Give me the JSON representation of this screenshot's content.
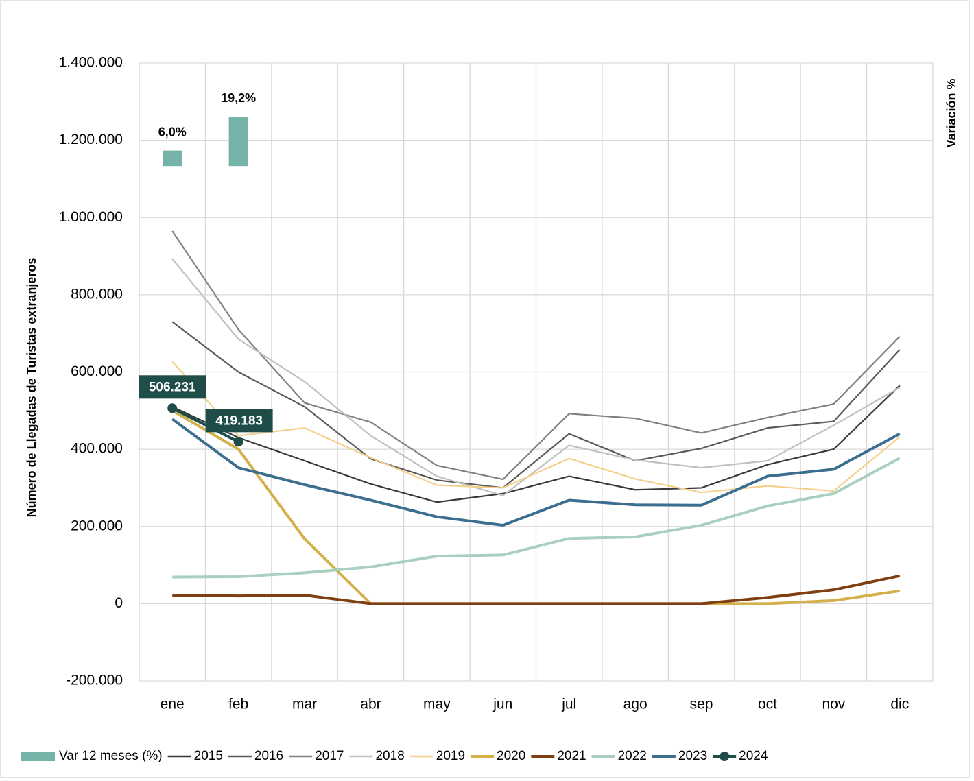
{
  "chart_data": {
    "type": "line",
    "y_axis_label": "Número de Llegadas de Turistas extranjeros",
    "y2_axis_label": "Variación %",
    "categories": [
      "ene",
      "feb",
      "mar",
      "abr",
      "may",
      "jun",
      "jul",
      "ago",
      "sep",
      "oct",
      "nov",
      "dic"
    ],
    "ylim": [
      -200000,
      1400000
    ],
    "yticks": [
      {
        "value": -200000,
        "label": "-200.000"
      },
      0,
      {
        "value": 200000,
        "label": "200.000"
      },
      {
        "value": 400000,
        "label": "400.000"
      },
      {
        "value": 600000,
        "label": "600.000"
      },
      {
        "value": 800000,
        "label": "800.000"
      },
      {
        "value": 1000000,
        "label": "1.000.000"
      },
      {
        "value": 1200000,
        "label": "1.200.000"
      },
      {
        "value": 1400000,
        "label": "1.400.000"
      }
    ],
    "y2lim": [
      -200,
      40
    ],
    "grid": true,
    "legend": "bottom",
    "series": [
      {
        "name": "Var 12 meses (%)",
        "type": "bar",
        "axis": "y2",
        "color": "#75b2a8",
        "values": [
          6.0,
          19.2,
          null,
          null,
          null,
          null,
          null,
          null,
          null,
          null,
          null,
          null
        ],
        "value_labels": [
          "6,0%",
          "19,2%",
          null,
          null,
          null,
          null,
          null,
          null,
          null,
          null,
          null,
          null
        ]
      },
      {
        "name": "2015",
        "color": "#3a3a3a",
        "values": [
          510000,
          430000,
          370000,
          310000,
          263000,
          285000,
          330000,
          295000,
          300000,
          360000,
          400000,
          565000
        ]
      },
      {
        "name": "2016",
        "color": "#595959",
        "values": [
          730000,
          600000,
          510000,
          375000,
          320000,
          300000,
          440000,
          370000,
          402000,
          455000,
          472000,
          658000
        ]
      },
      {
        "name": "2017",
        "color": "#808080",
        "values": [
          965000,
          710000,
          520000,
          470000,
          358000,
          322000,
          492000,
          480000,
          442000,
          482000,
          517000,
          692000
        ]
      },
      {
        "name": "2018",
        "color": "#c0c0c0",
        "values": [
          893000,
          685000,
          575000,
          435000,
          330000,
          280000,
          410000,
          372000,
          352000,
          370000,
          462000,
          560000
        ]
      },
      {
        "name": "2019",
        "color": "#f5d08c",
        "values": [
          627000,
          435000,
          455000,
          378000,
          307000,
          300000,
          376000,
          323000,
          288000,
          305000,
          292000,
          432000
        ]
      },
      {
        "name": "2020",
        "color": "#d4b04a",
        "values": [
          500000,
          400000,
          168000,
          0,
          0,
          0,
          0,
          0,
          0,
          0,
          8000,
          33000
        ]
      },
      {
        "name": "2021",
        "color": "#7f3f12",
        "values": [
          22000,
          20000,
          22000,
          0,
          0,
          0,
          0,
          0,
          0,
          16000,
          36000,
          72000
        ]
      },
      {
        "name": "2022",
        "color": "#a9d0be",
        "values": [
          69000,
          70000,
          80000,
          95000,
          123000,
          126000,
          169000,
          173000,
          203000,
          253000,
          285000,
          377000
        ]
      },
      {
        "name": "2023",
        "color": "#3c6e8f",
        "values": [
          478000,
          352000,
          308000,
          268000,
          225000,
          203000,
          268000,
          256000,
          255000,
          330000,
          348000,
          440000
        ]
      },
      {
        "name": "2024",
        "color": "#1e4d4a",
        "values": [
          506231,
          419183,
          null,
          null,
          null,
          null,
          null,
          null,
          null,
          null,
          null,
          null
        ],
        "value_labels": [
          "506.231",
          "419.183",
          null,
          null,
          null,
          null,
          null,
          null,
          null,
          null,
          null,
          null
        ]
      }
    ]
  }
}
